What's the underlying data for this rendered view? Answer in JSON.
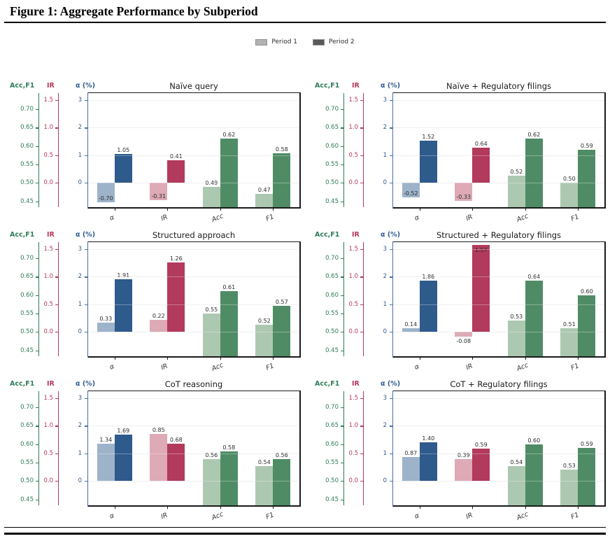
{
  "page_title": "Figure 1: Aggregate Performance by Subperiod",
  "legend": {
    "items": [
      {
        "label": "Period 1",
        "color": "#b3b3b3"
      },
      {
        "label": "Period 2",
        "color": "#595959"
      }
    ]
  },
  "colors": {
    "alpha_axis": "#2e5a8c",
    "ir_axis": "#b23a5c",
    "accf1_axis": "#2e7d57",
    "left_spine": "#4a70a8",
    "black_spine": "#1a1a1a",
    "grid_line": "#e7e7e7",
    "bar_alpha_p1": "#9db3ca",
    "bar_alpha_p2": "#2e5a8c",
    "bar_ir_p1": "#ddaab6",
    "bar_ir_p2": "#b23a5c",
    "bar_accf1_p1": "#adc8b1",
    "bar_accf1_p2": "#4f8c66"
  },
  "axes": {
    "alpha": {
      "label": "α (%)",
      "ticks": [
        {
          "v": 3,
          "t": "3"
        },
        {
          "v": 2,
          "t": "2"
        },
        {
          "v": 1,
          "t": "1"
        },
        {
          "v": 0,
          "t": "0"
        }
      ],
      "ylim": [
        -0.88,
        3.25
      ]
    },
    "ir": {
      "label": "IR",
      "ticks": [
        {
          "v": 1.5,
          "t": "1.5"
        },
        {
          "v": 1.0,
          "t": "1.0"
        },
        {
          "v": 0.5,
          "t": "0.5"
        },
        {
          "v": 0.0,
          "t": "0.0"
        }
      ]
    },
    "accf1": {
      "label": "Acc,F1",
      "ticks": [
        {
          "v": 0.7,
          "t": "0.70"
        },
        {
          "v": 0.65,
          "t": "0.65"
        },
        {
          "v": 0.6,
          "t": "0.60"
        },
        {
          "v": 0.55,
          "t": "0.55"
        },
        {
          "v": 0.5,
          "t": "0.50"
        },
        {
          "v": 0.45,
          "t": "0.45"
        }
      ]
    }
  },
  "chart_data": [
    {
      "type": "bar",
      "title": "Naïve query",
      "categories": [
        "α",
        "IR",
        "Acc",
        "F1"
      ],
      "series": [
        {
          "name": "Period 1",
          "values": [
            -0.7,
            -0.31,
            0.49,
            0.47
          ]
        },
        {
          "name": "Period 2",
          "values": [
            1.05,
            0.41,
            0.62,
            0.58
          ]
        }
      ]
    },
    {
      "type": "bar",
      "title": "Naïve + Regulatory filings",
      "categories": [
        "α",
        "IR",
        "Acc",
        "F1"
      ],
      "series": [
        {
          "name": "Period 1",
          "values": [
            -0.52,
            -0.33,
            0.52,
            0.5
          ]
        },
        {
          "name": "Period 2",
          "values": [
            1.52,
            0.64,
            0.62,
            0.59
          ]
        }
      ]
    },
    {
      "type": "bar",
      "title": "Structured approach",
      "categories": [
        "α",
        "IR",
        "Acc",
        "F1"
      ],
      "series": [
        {
          "name": "Period 1",
          "values": [
            0.33,
            0.22,
            0.55,
            0.52
          ]
        },
        {
          "name": "Period 2",
          "values": [
            1.91,
            1.26,
            0.61,
            0.57
          ]
        }
      ]
    },
    {
      "type": "bar",
      "title": "Structured + Regulatory filings",
      "categories": [
        "α",
        "IR",
        "Acc",
        "F1"
      ],
      "series": [
        {
          "name": "Period 1",
          "values": [
            0.14,
            -0.08,
            0.53,
            0.51
          ]
        },
        {
          "name": "Period 2",
          "values": [
            1.86,
            1.57,
            0.64,
            0.6
          ]
        }
      ]
    },
    {
      "type": "bar",
      "title": "CoT reasoning",
      "categories": [
        "α",
        "IR",
        "Acc",
        "F1"
      ],
      "series": [
        {
          "name": "Period 1",
          "values": [
            1.34,
            0.85,
            0.56,
            0.54
          ]
        },
        {
          "name": "Period 2",
          "values": [
            1.69,
            0.68,
            0.58,
            0.56
          ]
        }
      ]
    },
    {
      "type": "bar",
      "title": "CoT + Regulatory filings",
      "categories": [
        "α",
        "IR",
        "Acc",
        "F1"
      ],
      "series": [
        {
          "name": "Period 1",
          "values": [
            0.87,
            0.39,
            0.54,
            0.53
          ]
        },
        {
          "name": "Period 2",
          "values": [
            1.4,
            0.59,
            0.6,
            0.59
          ]
        }
      ]
    }
  ]
}
